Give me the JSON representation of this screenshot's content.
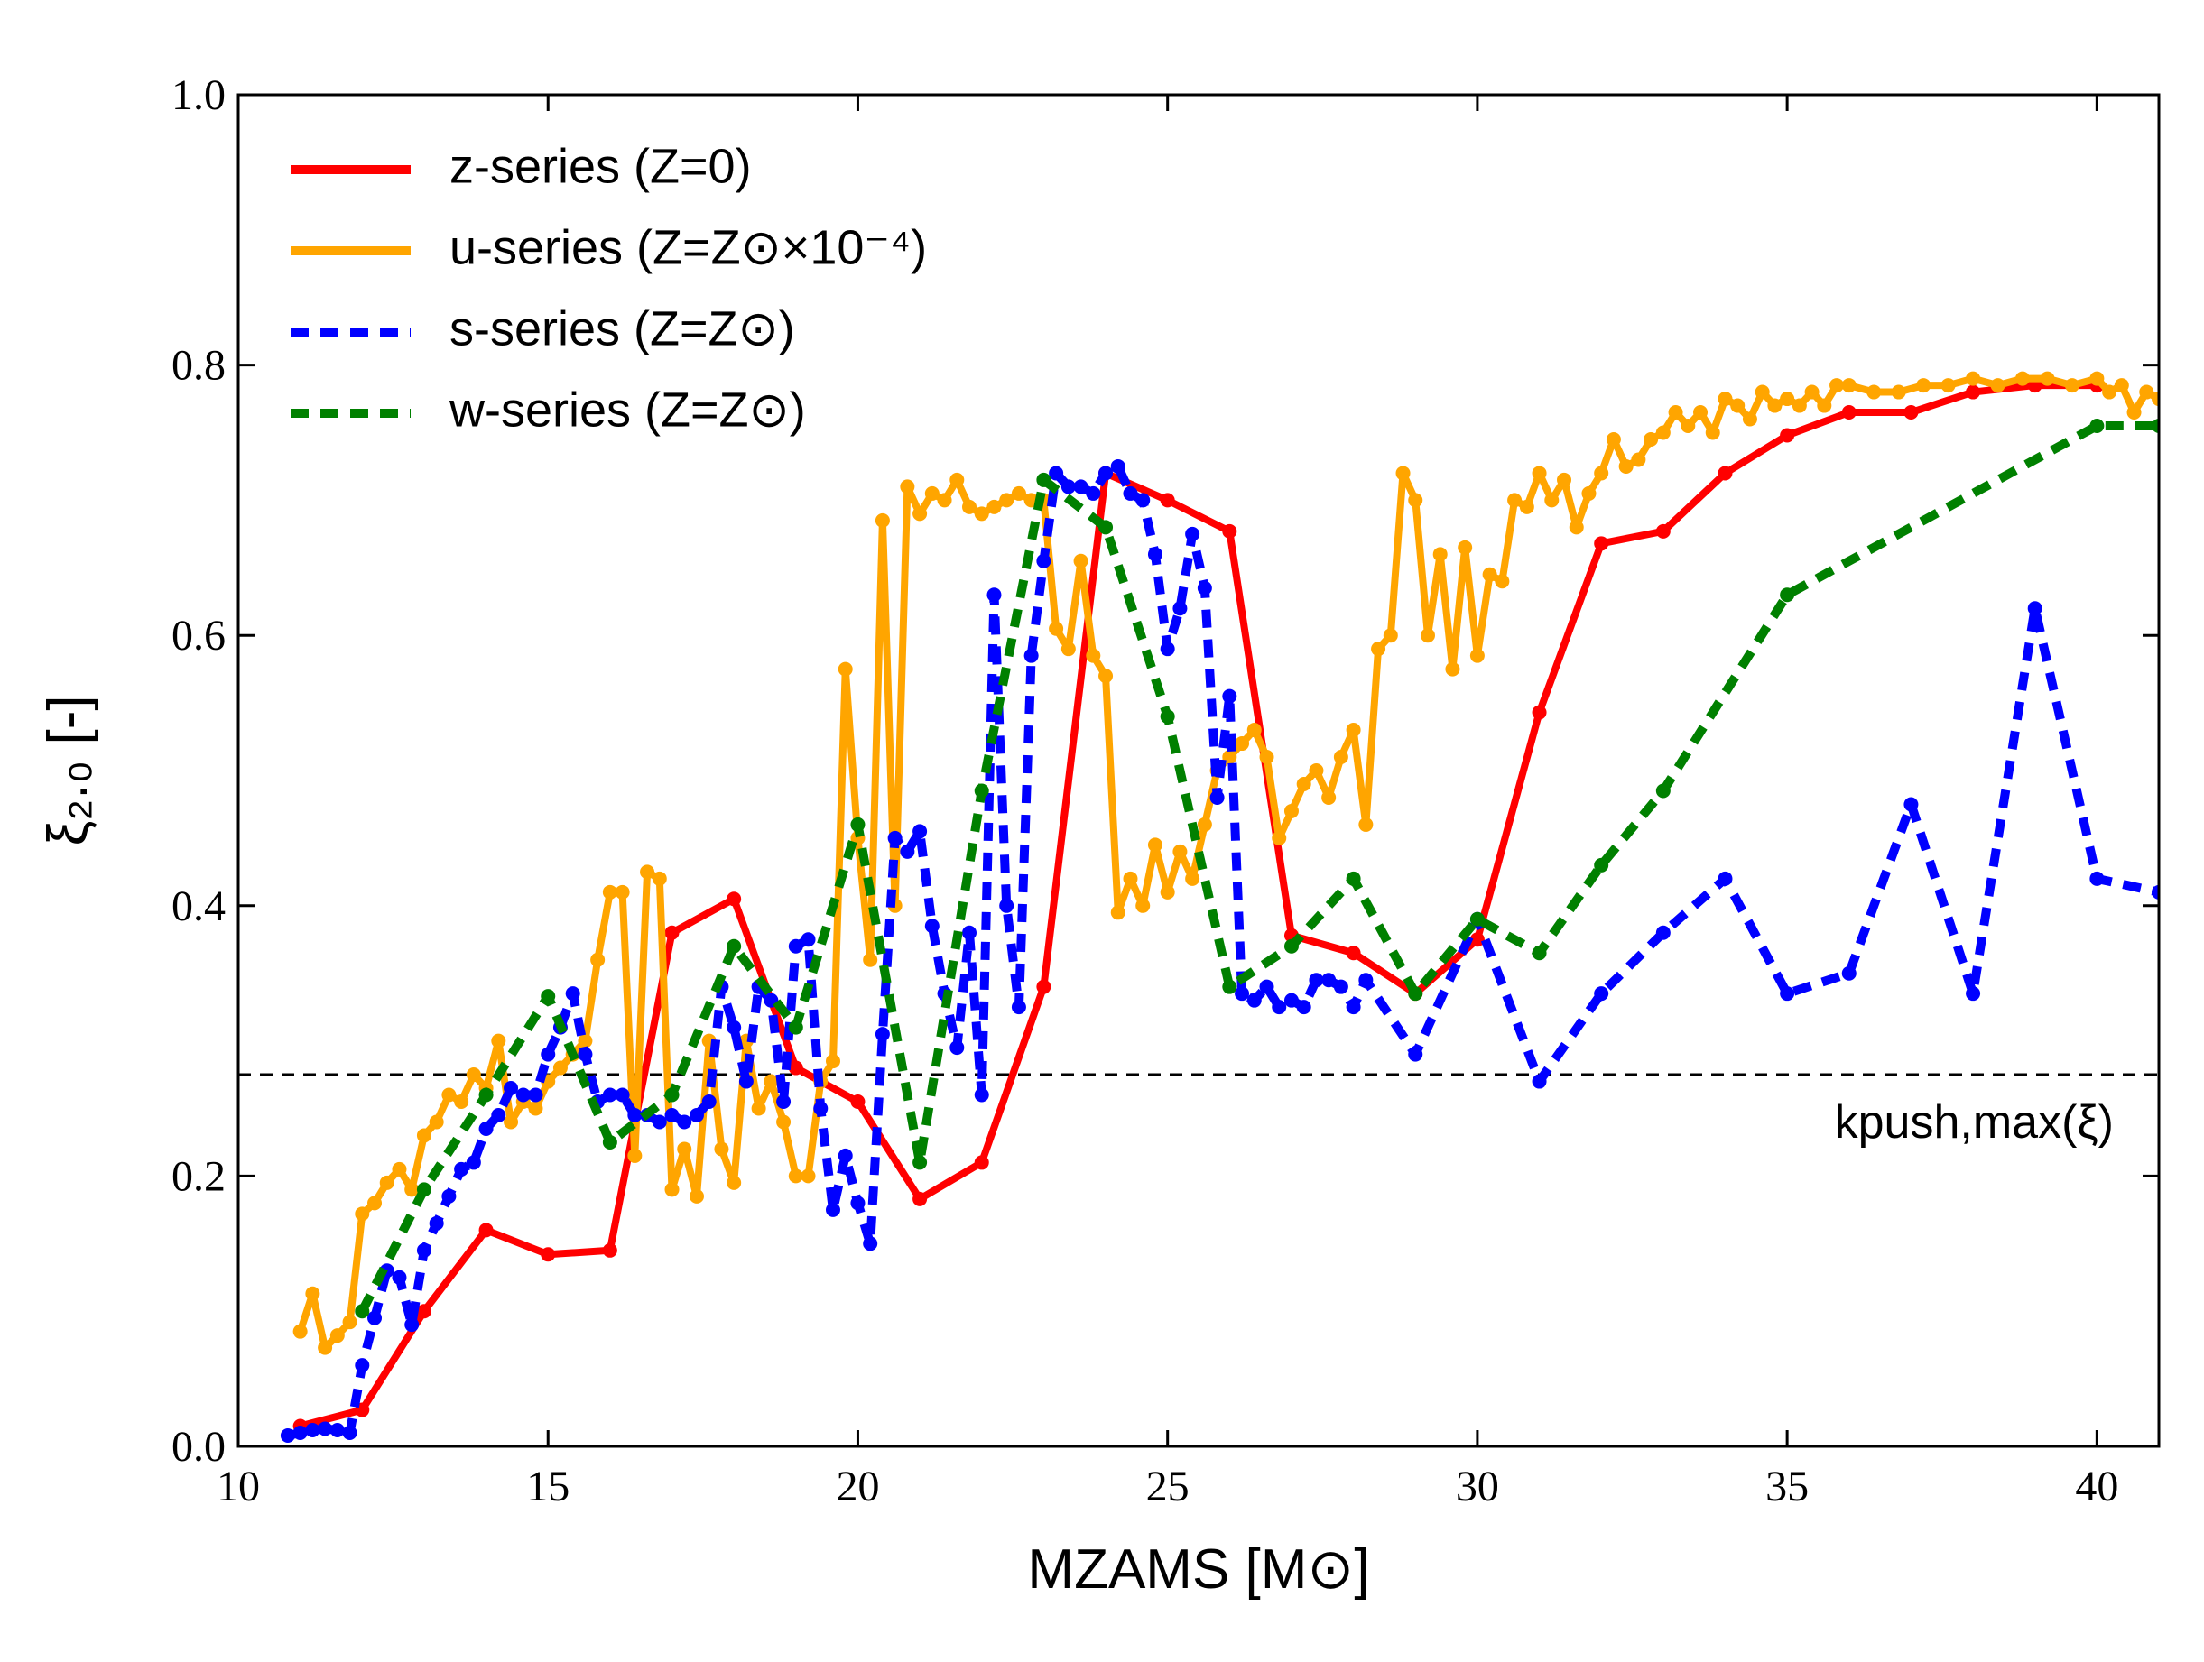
{
  "chart_data": {
    "type": "line",
    "xlabel": "MZAMS [M⊙]",
    "ylabel": "ξ₂.₀ [-]",
    "xlim": [
      10,
      41
    ],
    "ylim": [
      0,
      1
    ],
    "xticks": [
      10,
      15,
      20,
      25,
      30,
      35,
      40
    ],
    "yticks": [
      {
        "value": 0,
        "label": "0.0"
      },
      {
        "value": 0.2,
        "label": "0.2"
      },
      {
        "value": 0.4,
        "label": "0.4"
      },
      {
        "value": 0.6,
        "label": "0.6"
      },
      {
        "value": 0.8,
        "label": "0.8"
      },
      {
        "value": 1,
        "label": "1.0"
      }
    ],
    "legend": "upper left",
    "annotation": {
      "text": "kpush,max(ξ)",
      "y": 0.275
    },
    "series": [
      {
        "name": "z-series (Z=0)",
        "color": "#ff0000",
        "dashed": false,
        "x": [
          11,
          12,
          13,
          14,
          15,
          16,
          17,
          18,
          19,
          20,
          21,
          22,
          23,
          24,
          25,
          26,
          27,
          28,
          29,
          30,
          31,
          32,
          33,
          34,
          35,
          36,
          37,
          38,
          39,
          40
        ],
        "values": [
          0.015,
          0.027,
          0.1,
          0.16,
          0.142,
          0.145,
          0.38,
          0.405,
          0.28,
          0.255,
          0.183,
          0.21,
          0.34,
          0.72,
          0.7,
          0.677,
          0.378,
          0.365,
          0.335,
          0.375,
          0.543,
          0.668,
          0.677,
          0.72,
          0.748,
          0.765,
          0.765,
          0.78,
          0.785,
          0.785
        ]
      },
      {
        "name": "u-series (Z=Z⊙×10⁻⁴)",
        "color": "#ffa500",
        "dashed": false,
        "x": [
          11.0,
          11.2,
          11.4,
          11.6,
          11.8,
          12.0,
          12.2,
          12.4,
          12.6,
          12.8,
          13.0,
          13.2,
          13.4,
          13.6,
          13.8,
          14.0,
          14.2,
          14.4,
          14.6,
          14.8,
          15.0,
          15.2,
          15.4,
          15.6,
          15.8,
          16.0,
          16.2,
          16.4,
          16.6,
          16.8,
          17.0,
          17.2,
          17.4,
          17.6,
          17.8,
          18.0,
          18.2,
          18.4,
          18.6,
          18.8,
          19.0,
          19.2,
          19.4,
          19.6,
          19.8,
          20.0,
          20.2,
          20.4,
          20.6,
          20.8,
          21.0,
          21.2,
          21.4,
          21.6,
          21.8,
          22.0,
          22.2,
          22.4,
          22.6,
          22.8,
          23.0,
          23.2,
          23.4,
          23.6,
          23.8,
          24.0,
          24.2,
          24.4,
          24.6,
          24.8,
          25.0,
          25.2,
          25.4,
          25.6,
          25.8,
          26.0,
          26.2,
          26.4,
          26.6,
          26.8,
          27.0,
          27.2,
          27.4,
          27.6,
          27.8,
          28.0,
          28.2,
          28.4,
          28.6,
          28.8,
          29.0,
          29.2,
          29.4,
          29.6,
          29.8,
          30.0,
          30.2,
          30.4,
          30.6,
          30.8,
          31.0,
          31.2,
          31.4,
          31.6,
          31.8,
          32.0,
          32.2,
          32.4,
          32.6,
          32.8,
          33.0,
          33.2,
          33.4,
          33.6,
          33.8,
          34.0,
          34.2,
          34.4,
          34.6,
          34.8,
          35.0,
          35.2,
          35.4,
          35.6,
          35.8,
          36.0,
          36.4,
          36.8,
          37.2,
          37.6,
          38.0,
          38.4,
          38.8,
          39.2,
          39.6,
          40.0,
          40.2,
          40.4,
          40.6,
          40.8,
          41.0
        ],
        "values": [
          0.085,
          0.113,
          0.073,
          0.082,
          0.092,
          0.172,
          0.18,
          0.195,
          0.205,
          0.19,
          0.23,
          0.24,
          0.26,
          0.255,
          0.275,
          0.265,
          0.3,
          0.24,
          0.255,
          0.25,
          0.27,
          0.28,
          0.29,
          0.3,
          0.36,
          0.41,
          0.41,
          0.215,
          0.425,
          0.42,
          0.19,
          0.22,
          0.185,
          0.3,
          0.22,
          0.195,
          0.3,
          0.25,
          0.27,
          0.24,
          0.2,
          0.2,
          0.27,
          0.285,
          0.575,
          0.45,
          0.36,
          0.685,
          0.4,
          0.71,
          0.69,
          0.705,
          0.7,
          0.715,
          0.695,
          0.69,
          0.695,
          0.7,
          0.705,
          0.7,
          0.7,
          0.605,
          0.59,
          0.655,
          0.585,
          0.57,
          0.395,
          0.42,
          0.4,
          0.445,
          0.41,
          0.44,
          0.42,
          0.46,
          0.5,
          0.51,
          0.52,
          0.53,
          0.51,
          0.45,
          0.47,
          0.49,
          0.5,
          0.48,
          0.51,
          0.53,
          0.46,
          0.59,
          0.6,
          0.72,
          0.7,
          0.6,
          0.66,
          0.575,
          0.665,
          0.585,
          0.645,
          0.64,
          0.7,
          0.695,
          0.72,
          0.7,
          0.715,
          0.68,
          0.705,
          0.72,
          0.745,
          0.725,
          0.73,
          0.745,
          0.75,
          0.765,
          0.755,
          0.765,
          0.75,
          0.775,
          0.77,
          0.76,
          0.78,
          0.77,
          0.775,
          0.77,
          0.78,
          0.77,
          0.785,
          0.785,
          0.78,
          0.78,
          0.785,
          0.785,
          0.79,
          0.785,
          0.79,
          0.79,
          0.785,
          0.79,
          0.78,
          0.785,
          0.765,
          0.78,
          0.775
        ]
      },
      {
        "name": "s-series (Z=Z⊙)",
        "color": "#0000ff",
        "dashed": true,
        "x": [
          10.8,
          11.0,
          11.2,
          11.4,
          11.6,
          11.8,
          12.0,
          12.2,
          12.4,
          12.6,
          12.8,
          13.0,
          13.2,
          13.4,
          13.6,
          13.8,
          14.0,
          14.2,
          14.4,
          14.6,
          14.8,
          15.0,
          15.2,
          15.4,
          15.6,
          15.8,
          16.0,
          16.2,
          16.4,
          16.6,
          16.8,
          17.0,
          17.2,
          17.4,
          17.6,
          17.8,
          18.0,
          18.2,
          18.4,
          18.6,
          18.8,
          19.0,
          19.2,
          19.4,
          19.6,
          19.8,
          20.0,
          20.2,
          20.4,
          20.6,
          20.8,
          21.0,
          21.2,
          21.4,
          21.6,
          21.8,
          22.0,
          22.2,
          22.4,
          22.6,
          22.8,
          23.0,
          23.2,
          23.4,
          23.6,
          23.8,
          24.0,
          24.2,
          24.4,
          24.6,
          24.8,
          25.0,
          25.2,
          25.4,
          25.6,
          25.8,
          26.0,
          26.2,
          26.4,
          26.6,
          26.8,
          27.0,
          27.2,
          27.4,
          27.6,
          27.8,
          28.0,
          28.2,
          29,
          30,
          31,
          32,
          33,
          34,
          35,
          36,
          37,
          38,
          39,
          40,
          41
        ],
        "values": [
          0.008,
          0.01,
          0.012,
          0.013,
          0.012,
          0.01,
          0.06,
          0.095,
          0.13,
          0.125,
          0.09,
          0.145,
          0.165,
          0.185,
          0.205,
          0.21,
          0.235,
          0.245,
          0.265,
          0.26,
          0.26,
          0.29,
          0.31,
          0.335,
          0.29,
          0.255,
          0.26,
          0.26,
          0.245,
          0.245,
          0.24,
          0.245,
          0.24,
          0.245,
          0.255,
          0.34,
          0.31,
          0.27,
          0.34,
          0.33,
          0.255,
          0.37,
          0.375,
          0.25,
          0.175,
          0.215,
          0.18,
          0.15,
          0.305,
          0.45,
          0.44,
          0.455,
          0.385,
          0.335,
          0.295,
          0.38,
          0.26,
          0.63,
          0.4,
          0.325,
          0.585,
          0.655,
          0.72,
          0.71,
          0.71,
          0.705,
          0.72,
          0.725,
          0.705,
          0.7,
          0.66,
          0.59,
          0.62,
          0.675,
          0.635,
          0.48,
          0.555,
          0.335,
          0.33,
          0.34,
          0.325,
          0.33,
          0.325,
          0.345,
          0.345,
          0.34,
          0.325,
          0.345,
          0.29,
          0.39,
          0.27,
          0.335,
          0.38,
          0.42,
          0.335,
          0.35,
          0.475,
          0.335,
          0.62,
          0.42,
          0.41
        ]
      },
      {
        "name": "w-series (Z=Z⊙)",
        "color": "#008000",
        "dashed": true,
        "x": [
          12,
          13,
          14,
          15,
          16,
          17,
          18,
          19,
          20,
          21,
          22,
          23,
          24,
          25,
          26,
          27,
          28,
          29,
          30,
          31,
          32,
          33,
          35,
          40,
          41
        ],
        "values": [
          0.1,
          0.19,
          0.26,
          0.333,
          0.225,
          0.26,
          0.37,
          0.31,
          0.46,
          0.21,
          0.485,
          0.715,
          0.68,
          0.54,
          0.34,
          0.37,
          0.42,
          0.335,
          0.39,
          0.365,
          0.43,
          0.485,
          0.63,
          0.755,
          0.755
        ]
      }
    ]
  }
}
